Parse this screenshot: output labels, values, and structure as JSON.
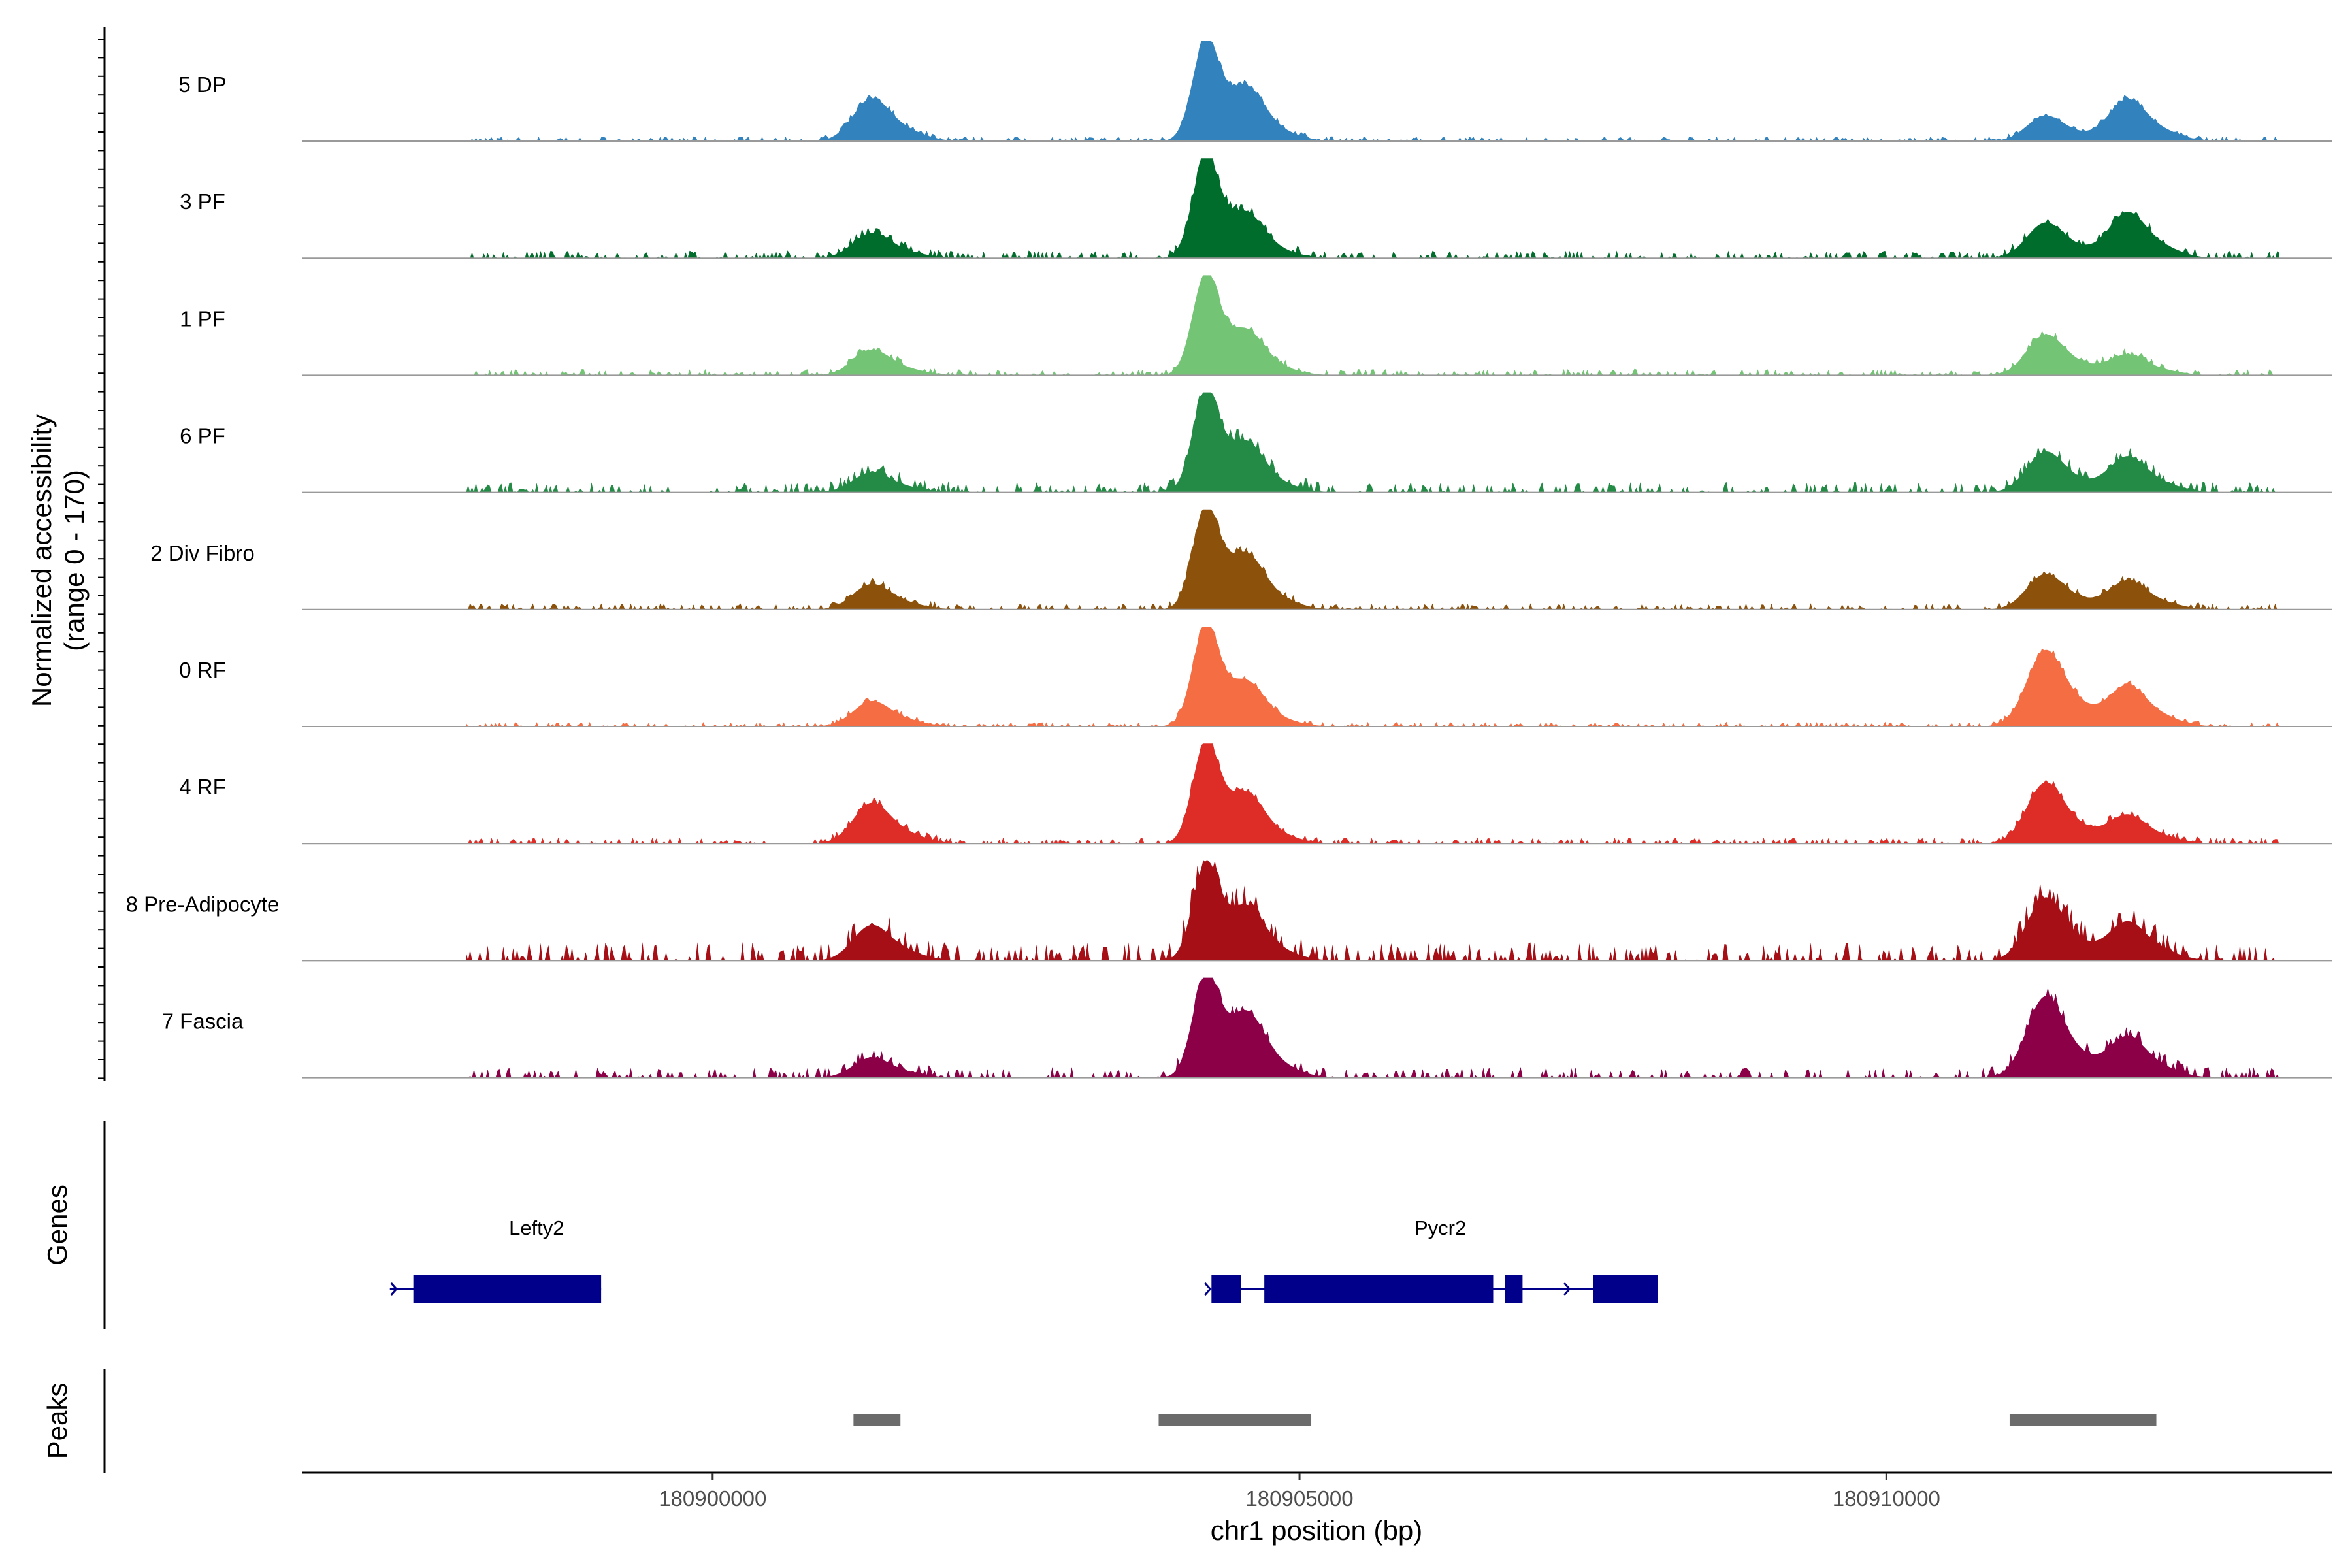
{
  "chart_data": {
    "type": "area",
    "y_axis_title": "Normalized accessibility",
    "y_axis_subtitle": "(range 0 - 170)",
    "y_range": [
      0,
      170
    ],
    "x_axis_title": "chr1 position (bp)",
    "x_range": [
      180896500,
      180913800
    ],
    "x_ticks": [
      180900000,
      180905000,
      180910000
    ],
    "x_tick_labels": [
      "180900000",
      "180905000",
      "180910000"
    ],
    "genes_track_title": "Genes",
    "peaks_track_title": "Peaks",
    "tracks": [
      {
        "name": "5 DP",
        "color": "#3182bd",
        "peaks": [
          [
            180901350,
            0.42
          ],
          [
            180904200,
            1.0
          ],
          [
            180904550,
            0.34
          ],
          [
            180911350,
            0.25
          ],
          [
            180912050,
            0.41
          ]
        ],
        "noise": 0.03
      },
      {
        "name": "3 PF",
        "color": "#006d2c",
        "peaks": [
          [
            180901350,
            0.25
          ],
          [
            180904200,
            1.0
          ],
          [
            180904550,
            0.25
          ],
          [
            180911350,
            0.35
          ],
          [
            180912050,
            0.45
          ]
        ],
        "noise": 0.05
      },
      {
        "name": "1 PF",
        "color": "#74c476",
        "peaks": [
          [
            180901350,
            0.25
          ],
          [
            180904200,
            1.0
          ],
          [
            180904550,
            0.25
          ],
          [
            180911350,
            0.4
          ],
          [
            180912050,
            0.2
          ]
        ],
        "noise": 0.04
      },
      {
        "name": "6 PF",
        "color": "#238b45",
        "peaks": [
          [
            180901350,
            0.2
          ],
          [
            180904200,
            1.0
          ],
          [
            180904550,
            0.3
          ],
          [
            180911350,
            0.4
          ],
          [
            180912050,
            0.35
          ]
        ],
        "noise": 0.07
      },
      {
        "name": "2 Div Fibro",
        "color": "#8c510a",
        "peaks": [
          [
            180901350,
            0.25
          ],
          [
            180904200,
            1.0
          ],
          [
            180904550,
            0.35
          ],
          [
            180911350,
            0.35
          ],
          [
            180912050,
            0.28
          ]
        ],
        "noise": 0.04
      },
      {
        "name": "0 RF",
        "color": "#f46d43",
        "peaks": [
          [
            180901350,
            0.25
          ],
          [
            180904200,
            1.0
          ],
          [
            180904550,
            0.25
          ],
          [
            180911350,
            0.75
          ],
          [
            180912050,
            0.4
          ]
        ],
        "noise": 0.03
      },
      {
        "name": "4 RF",
        "color": "#de2d26",
        "peaks": [
          [
            180901350,
            0.4
          ],
          [
            180904200,
            1.0
          ],
          [
            180904550,
            0.3
          ],
          [
            180911350,
            0.6
          ],
          [
            180912050,
            0.28
          ]
        ],
        "noise": 0.04
      },
      {
        "name": "8 Pre-Adipocyte",
        "color": "#a50f15",
        "peaks": [
          [
            180901350,
            0.35
          ],
          [
            180904200,
            0.95
          ],
          [
            180904550,
            0.35
          ],
          [
            180911350,
            0.62
          ],
          [
            180912050,
            0.38
          ]
        ],
        "noise": 0.12
      },
      {
        "name": "7 Fascia",
        "color": "#8c0047",
        "peaks": [
          [
            180901350,
            0.2
          ],
          [
            180904200,
            1.0
          ],
          [
            180904550,
            0.45
          ],
          [
            180911350,
            0.8
          ],
          [
            180912050,
            0.4
          ]
        ],
        "noise": 0.07
      }
    ],
    "genes": [
      {
        "name": "Lefty2",
        "color": "#00008b",
        "start": 180897250,
        "end": 180899050,
        "label_pos": 180898500,
        "exons": [
          [
            180897450,
            180899050
          ]
        ]
      },
      {
        "name": "Pycr2",
        "color": "#00008b",
        "start": 180904250,
        "end": 180908050,
        "label_pos": 180906200,
        "exons": [
          [
            180904250,
            180904500
          ],
          [
            180904700,
            180906650
          ],
          [
            180906750,
            180906900
          ],
          [
            180907500,
            180908050
          ]
        ]
      }
    ],
    "peaks": [
      [
        180901200,
        180901600
      ],
      [
        180903800,
        180905100
      ],
      [
        180911050,
        180912300
      ]
    ]
  }
}
